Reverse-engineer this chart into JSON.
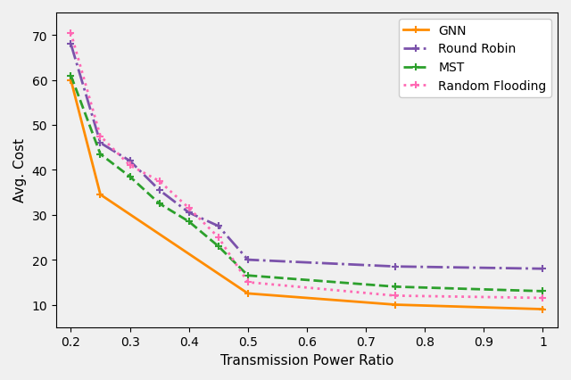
{
  "title": "",
  "xlabel": "Transmission Power Ratio",
  "ylabel": "Avg. Cost",
  "xlim": [
    0.175,
    1.025
  ],
  "ylim": [
    5,
    75
  ],
  "yticks": [
    10,
    20,
    30,
    40,
    50,
    60,
    70
  ],
  "xticks": [
    0.2,
    0.3,
    0.4,
    0.5,
    0.6,
    0.7,
    0.8,
    0.9,
    1.0
  ],
  "series": {
    "GNN": {
      "x": [
        0.2,
        0.25,
        0.5,
        0.75,
        1.0
      ],
      "y": [
        60.0,
        34.5,
        12.5,
        10.0,
        9.0
      ],
      "color": "#FF8C00",
      "linestyle": "-",
      "marker": "P",
      "markersize": 6,
      "linewidth": 2.0,
      "label": "GNN"
    },
    "RoundRobin": {
      "x": [
        0.2,
        0.25,
        0.3,
        0.35,
        0.4,
        0.45,
        0.5,
        0.75,
        1.0
      ],
      "y": [
        68.0,
        46.0,
        42.0,
        35.5,
        30.5,
        27.5,
        20.0,
        18.5,
        18.0
      ],
      "color": "#7B52AB",
      "linestyle": "-.",
      "marker": "P",
      "markersize": 6,
      "linewidth": 2.0,
      "label": "Round Robin"
    },
    "MST": {
      "x": [
        0.2,
        0.25,
        0.3,
        0.35,
        0.4,
        0.45,
        0.5,
        0.75,
        1.0
      ],
      "y": [
        61.0,
        43.5,
        38.5,
        32.5,
        28.5,
        23.0,
        16.5,
        14.0,
        13.0
      ],
      "color": "#2CA02C",
      "linestyle": "--",
      "marker": "P",
      "markersize": 6,
      "linewidth": 2.0,
      "label": "MST"
    },
    "RandomFlooding": {
      "x": [
        0.2,
        0.25,
        0.3,
        0.35,
        0.4,
        0.45,
        0.5,
        0.75,
        1.0
      ],
      "y": [
        70.5,
        47.5,
        41.0,
        37.5,
        31.5,
        25.0,
        15.0,
        12.0,
        11.5
      ],
      "color": "#FF69B4",
      "linestyle": ":",
      "marker": "P",
      "markersize": 6,
      "linewidth": 2.0,
      "label": "Random Flooding"
    }
  },
  "bg_color": "#f0f0f0",
  "legend_fontsize": 10,
  "tick_fontsize": 10,
  "label_fontsize": 11
}
